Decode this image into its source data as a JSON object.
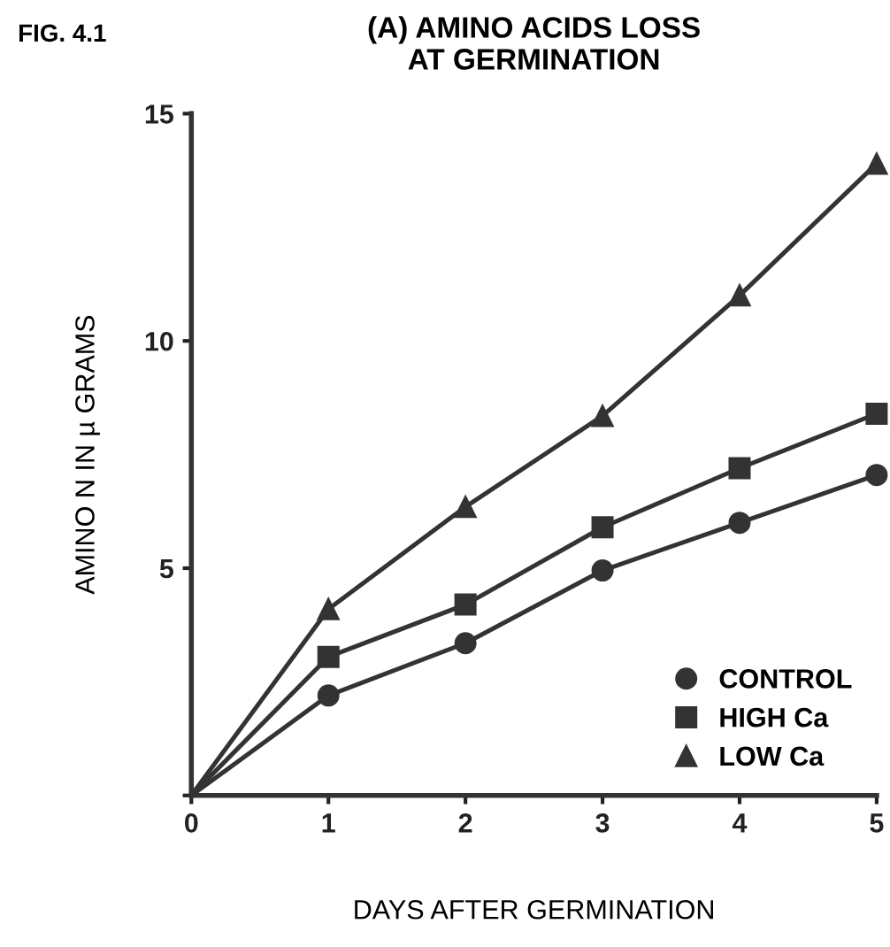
{
  "chart_data": {
    "type": "line",
    "title": "(A) AMINO ACIDS LOSS\nAT GERMINATION",
    "xlabel": "DAYS AFTER GERMINATION",
    "ylabel": "AMINO N IN µ GRAMS",
    "annotations": [
      "FIG. 4.1"
    ],
    "x": [
      0,
      1,
      2,
      3,
      4,
      5
    ],
    "series": [
      {
        "name": "CONTROL",
        "color": "#333333",
        "marker": "circle",
        "values": [
          0,
          2.2,
          3.35,
          4.95,
          6.0,
          7.05
        ]
      },
      {
        "name": "HIGH Ca",
        "color": "#333333",
        "marker": "square",
        "values": [
          0,
          3.05,
          4.2,
          5.9,
          7.2,
          8.4
        ]
      },
      {
        "name": "LOW Ca",
        "color": "#333333",
        "marker": "triangle",
        "values": [
          0,
          4.1,
          6.35,
          8.35,
          11.0,
          13.9
        ]
      }
    ],
    "xlim": [
      0,
      5
    ],
    "ylim": [
      0,
      15
    ],
    "xticks": [
      0,
      1,
      2,
      3,
      4,
      5
    ],
    "yticks": [
      {
        "value": 0,
        "label": null
      },
      5,
      10,
      15
    ],
    "grid": false,
    "legend": "bottom right",
    "line_style": "solid"
  }
}
